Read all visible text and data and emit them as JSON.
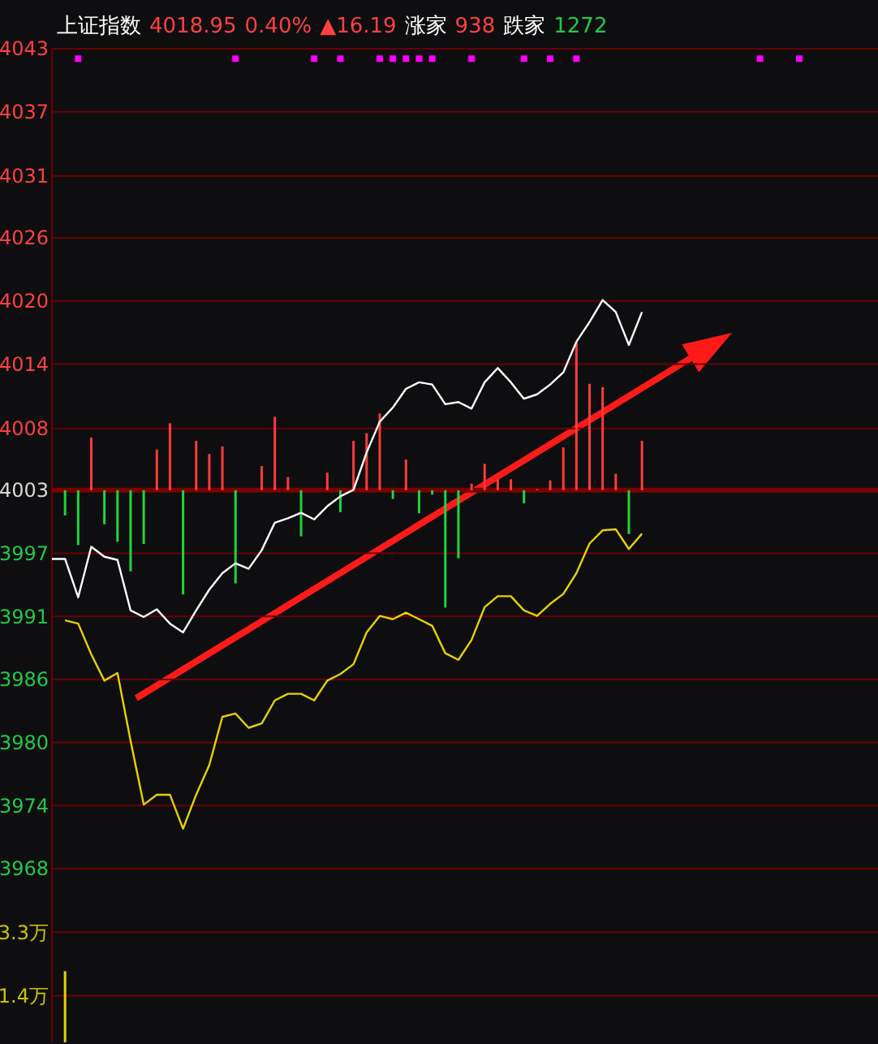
{
  "chart_data": [
    {
      "type": "line",
      "title": "上证指数 4018.95 0.40% ▲16.19 涨家 938 跌家 1272",
      "categories": [
        null,
        null,
        null,
        null,
        null,
        null,
        null,
        null,
        null,
        null,
        null,
        null,
        null,
        null,
        null,
        null,
        null,
        null,
        null,
        null,
        null,
        null,
        null,
        null,
        null,
        null,
        null,
        null,
        null,
        null,
        null,
        null,
        null,
        null,
        null,
        null,
        null,
        null,
        null,
        null,
        null,
        null,
        null,
        null,
        null,
        null,
        null,
        null,
        null,
        null,
        null,
        null,
        null,
        null,
        null,
        null,
        null,
        null,
        null,
        null,
        null,
        null,
        null,
        null
      ],
      "ylim": [
        3968.26,
        4043.01
      ],
      "yticks": [
        {
          "value": 4043.01,
          "label": "4043"
        },
        {
          "value": 4037.26,
          "label": "4037"
        },
        {
          "value": 4031.4,
          "label": "4031"
        },
        {
          "value": 4025.76,
          "label": "4026"
        },
        {
          "value": 4020.01,
          "label": "4020"
        },
        {
          "value": 4014.26,
          "label": "4014"
        },
        {
          "value": 4008.4,
          "label": "4008"
        },
        {
          "value": 4002.76,
          "label": "4003"
        },
        {
          "value": 3997.01,
          "label": "3997"
        },
        {
          "value": 3991.26,
          "label": "3991"
        },
        {
          "value": 3985.51,
          "label": "3986"
        },
        {
          "value": 3979.76,
          "label": "3980"
        },
        {
          "value": 3974.01,
          "label": "3974"
        },
        {
          "value": 3968.26,
          "label": "3968"
        }
      ],
      "grid": "y",
      "tick_labels": "y",
      "ref_lines": [
        {
          "axis": "y",
          "value": 4002.76,
          "label": null,
          "color": "#7a0000"
        }
      ],
      "series": [
        {
          "type": "bar",
          "base": [
            null,
            4002.76,
            4002.76,
            4002.76,
            4002.76,
            4002.76,
            4002.76,
            4002.76,
            4002.76,
            4002.76,
            4002.76,
            4002.76,
            4002.76,
            4002.76,
            4002.76,
            null,
            4002.76,
            4002.76,
            4002.76,
            4002.76,
            null,
            4002.76,
            4002.76,
            4002.76,
            4002.76,
            4002.76,
            4002.76,
            4002.76,
            4002.76,
            4002.76,
            4002.76,
            4002.76,
            4002.76,
            4002.76,
            4002.76,
            4002.76,
            4002.76,
            4002.76,
            4002.76,
            4002.76,
            4002.76,
            4002.76,
            4002.76,
            4002.76,
            4002.76,
            4002.76,
            null,
            null,
            null,
            null,
            null,
            null,
            null,
            null,
            null,
            null,
            null,
            null,
            null,
            null,
            null,
            null,
            null,
            null
          ],
          "colors": [
            null,
            "#1fd43a",
            "#1fd43a",
            "#ff3b3b",
            "#1fd43a",
            "#1fd43a",
            "#1fd43a",
            "#1fd43a",
            "#ff3b3b",
            "#ff3b3b",
            "#1fd43a",
            "#ff3b3b",
            "#ff3b3b",
            "#ff3b3b",
            "#1fd43a",
            null,
            "#ff3b3b",
            "#ff3b3b",
            "#ff3b3b",
            "#1fd43a",
            null,
            "#ff3b3b",
            "#1fd43a",
            "#ff3b3b",
            "#ff3b3b",
            "#ff3b3b",
            "#1fd43a",
            "#ff3b3b",
            "#1fd43a",
            "#1fd43a",
            "#1fd43a",
            "#1fd43a",
            "#ff3b3b",
            "#ff3b3b",
            "#ff3b3b",
            "#ff3b3b",
            "#1fd43a",
            "#ff3b3b",
            "#ff3b3b",
            "#ff3b3b",
            "#ff3b3b",
            "#ff3b3b",
            "#ff3b3b",
            "#ff3b3b",
            "#1fd43a",
            "#ff3b3b",
            null,
            null,
            null,
            null,
            null,
            null,
            null,
            null,
            null,
            null,
            null,
            null,
            null,
            null,
            null,
            null,
            null,
            null
          ],
          "values": [
            null,
            -2.3,
            -5.0,
            4.8,
            -3.1,
            -4.7,
            -7.4,
            -4.9,
            3.7,
            6.1,
            -9.5,
            4.5,
            3.3,
            4.0,
            -8.5,
            null,
            2.2,
            6.7,
            1.2,
            -4.2,
            null,
            1.6,
            -2.0,
            4.5,
            5.2,
            7.0,
            -0.8,
            2.8,
            -2.1,
            -0.4,
            -10.7,
            -6.2,
            0.6,
            2.4,
            1.0,
            1.0,
            -1.2,
            0.1,
            0.9,
            3.9,
            13.5,
            9.7,
            9.4,
            1.5,
            -4.0,
            4.5,
            null,
            null,
            null,
            null,
            null,
            null,
            null,
            null,
            null,
            null,
            null,
            null,
            null,
            null,
            null,
            null,
            null,
            null
          ]
        },
        {
          "color": "#ffffff",
          "values": [
            3996.5,
            3996.5,
            3993.0,
            3997.6,
            3996.7,
            3996.4,
            3991.8,
            3991.2,
            3991.9,
            3990.6,
            3989.8,
            3991.8,
            3993.7,
            3995.2,
            3996.1,
            3995.6,
            3997.3,
            3999.8,
            4000.2,
            4000.7,
            4000.1,
            4001.3,
            4002.2,
            4002.8,
            4006.2,
            4009.0,
            4010.3,
            4012.0,
            4012.6,
            4012.4,
            4010.6,
            4010.8,
            4010.2,
            4012.6,
            4013.9,
            4012.6,
            4011.1,
            4011.5,
            4012.4,
            4013.5,
            4016.3,
            4018.1,
            4020.1,
            4019.0,
            4016.0,
            4019.0,
            null,
            null,
            null,
            null,
            null,
            null,
            null,
            null,
            null,
            null,
            null,
            null,
            null,
            null,
            null,
            null,
            null,
            null
          ]
        },
        {
          "type": "line",
          "color": "#e6d200",
          "values": [
            null,
            3990.9,
            3990.6,
            3987.8,
            3985.4,
            3986.1,
            3979.9,
            3974.1,
            3975.0,
            3975.0,
            3971.9,
            3975.0,
            3977.7,
            3982.1,
            3982.4,
            3981.1,
            3981.5,
            3983.6,
            3984.2,
            3984.2,
            3983.6,
            3985.4,
            3986.0,
            3986.9,
            3989.8,
            3991.3,
            3991.0,
            3991.6,
            3991.0,
            3990.4,
            3987.9,
            3987.3,
            3989.1,
            3992.1,
            3993.1,
            3993.1,
            3991.8,
            3991.3,
            3992.4,
            3993.3,
            3995.2,
            3997.9,
            3999.1,
            3999.2,
            3997.4,
            3998.8,
            null,
            null,
            null,
            null,
            null,
            null,
            null,
            null,
            null,
            null,
            null,
            null,
            null,
            null,
            null,
            null,
            null,
            null
          ]
        },
        {
          "type": "scatter",
          "color": "#ff00ff",
          "marker": "square",
          "values": [
            null,
            null,
            4042.1,
            null,
            null,
            null,
            null,
            null,
            null,
            null,
            null,
            null,
            null,
            null,
            4042.1,
            null,
            null,
            null,
            null,
            null,
            4042.1,
            null,
            4042.1,
            null,
            null,
            4042.1,
            4042.1,
            4042.1,
            4042.1,
            4042.1,
            null,
            null,
            4042.1,
            null,
            null,
            null,
            4042.1,
            null,
            4042.1,
            null,
            4042.1,
            null,
            null,
            null,
            null,
            null,
            null,
            null,
            null,
            null,
            null,
            null,
            null,
            null,
            4042.1,
            null,
            null,
            4042.1,
            null,
            null,
            null,
            null,
            null,
            null
          ]
        }
      ]
    },
    {
      "type": "bar",
      "categories": [
        null,
        null,
        null,
        null,
        null,
        null,
        null,
        null,
        null,
        null,
        null,
        null,
        null,
        null,
        null,
        null,
        null,
        null,
        null,
        null,
        null,
        null,
        null,
        null,
        null,
        null,
        null,
        null,
        null,
        null,
        null,
        null,
        null,
        null,
        null,
        null,
        null,
        null,
        null,
        null,
        null,
        null,
        null,
        null,
        null,
        null,
        null,
        null,
        null,
        null,
        null,
        null,
        null,
        null,
        null,
        null,
        null,
        null,
        null,
        null,
        null,
        null,
        null,
        null
      ],
      "ylim": [
        0,
        5.2
      ],
      "yticks": [
        {
          "value": 3.3,
          "label": "3.3万"
        },
        {
          "value": 1.4,
          "label": "1.4万"
        }
      ],
      "grid": "y",
      "tick_labels": "y",
      "series": [
        {
          "color": "#e6d200",
          "values": [
            null,
            2.13,
            null,
            null,
            null,
            null,
            null,
            null,
            null,
            null,
            null,
            null,
            null,
            null,
            null,
            null,
            null,
            null,
            null,
            null,
            null,
            null,
            null,
            null,
            null,
            null,
            null,
            null,
            null,
            null,
            null,
            null,
            null,
            null,
            null,
            null,
            null,
            null,
            null,
            null,
            null,
            null,
            null,
            null,
            null,
            null,
            null,
            null,
            null,
            null,
            null,
            null,
            null,
            null,
            null,
            null,
            null,
            null,
            null,
            null,
            null,
            null,
            null,
            null
          ]
        }
      ]
    }
  ]
}
